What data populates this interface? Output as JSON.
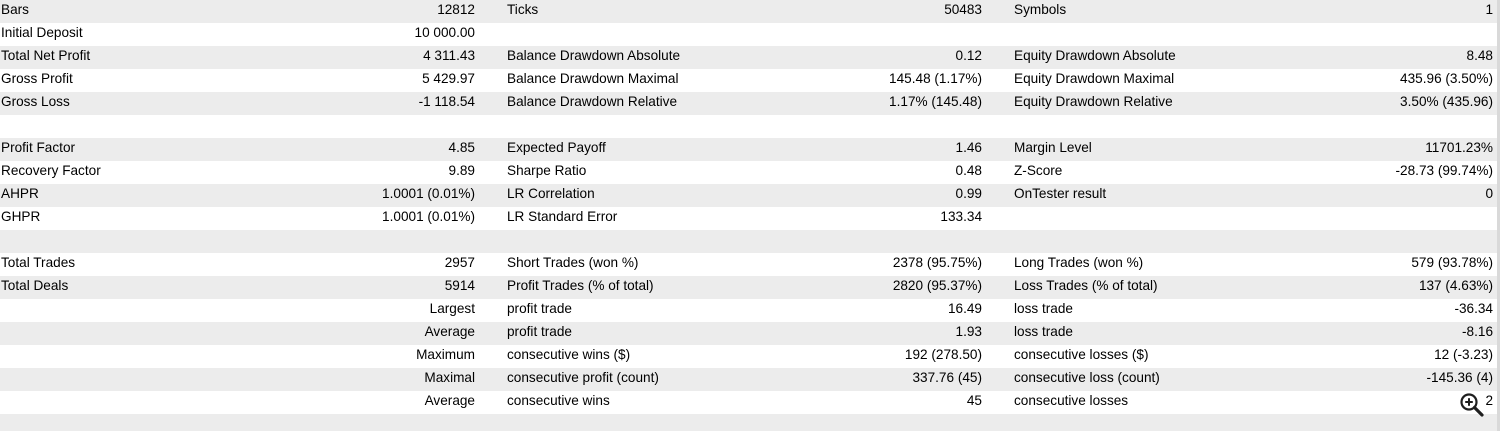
{
  "rows": [
    {
      "style": "shaded",
      "cells": [
        "Bars",
        "12812",
        "Ticks",
        "50483",
        "Symbols",
        "1"
      ]
    },
    {
      "style": "plain",
      "cells": [
        "Initial Deposit",
        "10 000.00",
        "",
        "",
        "",
        ""
      ]
    },
    {
      "style": "shaded",
      "cells": [
        "Total Net Profit",
        "4 311.43",
        "Balance Drawdown Absolute",
        "0.12",
        "Equity Drawdown Absolute",
        "8.48"
      ]
    },
    {
      "style": "plain",
      "cells": [
        "Gross Profit",
        "5 429.97",
        "Balance Drawdown Maximal",
        "145.48 (1.17%)",
        "Equity Drawdown Maximal",
        "435.96 (3.50%)"
      ]
    },
    {
      "style": "shaded",
      "cells": [
        "Gross Loss",
        "-1 118.54",
        "Balance Drawdown Relative",
        "1.17% (145.48)",
        "Equity Drawdown Relative",
        "3.50% (435.96)"
      ]
    },
    {
      "style": "plain",
      "cells": [
        "",
        "",
        "",
        "",
        "",
        ""
      ]
    },
    {
      "style": "shaded",
      "cells": [
        "Profit Factor",
        "4.85",
        "Expected Payoff",
        "1.46",
        "Margin Level",
        "11701.23%"
      ]
    },
    {
      "style": "plain",
      "cells": [
        "Recovery Factor",
        "9.89",
        "Sharpe Ratio",
        "0.48",
        "Z-Score",
        "-28.73 (99.74%)"
      ]
    },
    {
      "style": "shaded",
      "cells": [
        "AHPR",
        "1.0001 (0.01%)",
        "LR Correlation",
        "0.99",
        "OnTester result",
        "0"
      ]
    },
    {
      "style": "plain",
      "cells": [
        "GHPR",
        "1.0001 (0.01%)",
        "LR Standard Error",
        "133.34",
        "",
        ""
      ]
    },
    {
      "style": "shaded",
      "cells": [
        "",
        "",
        "",
        "",
        "",
        ""
      ]
    },
    {
      "style": "plain",
      "cells": [
        "Total Trades",
        "2957",
        "Short Trades (won %)",
        "2378 (95.75%)",
        "Long Trades (won %)",
        "579 (93.78%)"
      ]
    },
    {
      "style": "shaded",
      "cells": [
        "Total Deals",
        "5914",
        "Profit Trades (% of total)",
        "2820 (95.37%)",
        "Loss Trades (% of total)",
        "137 (4.63%)"
      ]
    },
    {
      "style": "plain",
      "cells": [
        "",
        "Largest",
        "profit trade",
        "16.49",
        "loss trade",
        "-36.34"
      ]
    },
    {
      "style": "shaded",
      "cells": [
        "",
        "Average",
        "profit trade",
        "1.93",
        "loss trade",
        "-8.16"
      ]
    },
    {
      "style": "plain",
      "cells": [
        "",
        "Maximum",
        "consecutive wins ($)",
        "192 (278.50)",
        "consecutive losses ($)",
        "12 (-3.23)"
      ]
    },
    {
      "style": "shaded",
      "cells": [
        "",
        "Maximal",
        "consecutive profit (count)",
        "337.76 (45)",
        "consecutive loss (count)",
        "-145.36 (4)"
      ]
    },
    {
      "style": "plain",
      "cells": [
        "",
        "Average",
        "consecutive wins",
        "45",
        "consecutive losses",
        "2"
      ]
    },
    {
      "style": "shaded",
      "cells": [
        "",
        "",
        "",
        "",
        "",
        ""
      ]
    }
  ],
  "icons": {
    "zoom": "zoom-in-magnifier-icon"
  },
  "colors": {
    "row_shaded": "#ececec",
    "row_plain": "#ffffff",
    "text": "#000000"
  }
}
